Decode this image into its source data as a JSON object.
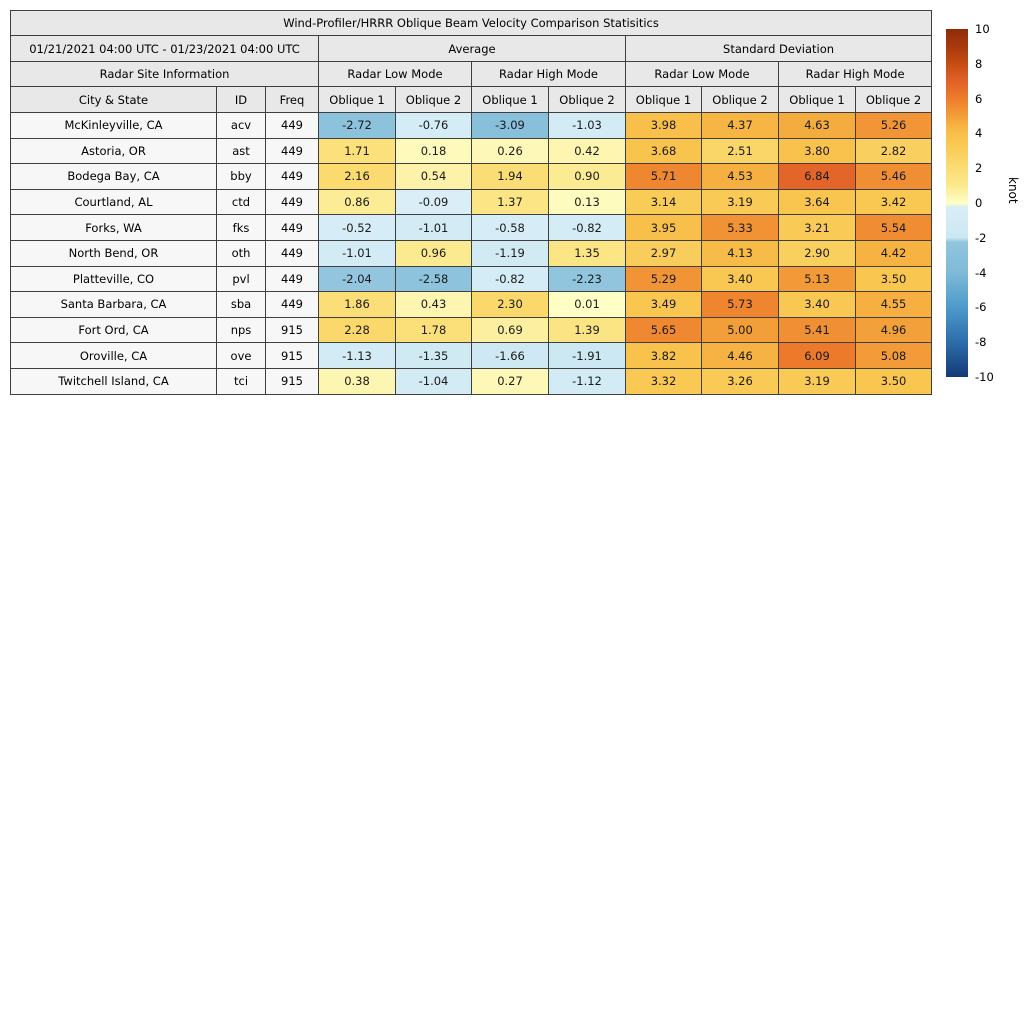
{
  "title": "Wind-Profiler/HRRR Oblique Beam Velocity Comparison Statisitics",
  "header": {
    "date_range": "01/21/2021 04:00 UTC - 01/23/2021 04:00 UTC",
    "group_average": "Average",
    "group_std": "Standard Deviation",
    "site_info": "Radar Site Information",
    "mode_labels": [
      "Radar Low Mode",
      "Radar High Mode",
      "Radar Low Mode",
      "Radar High Mode"
    ],
    "col_labels": [
      "City & State",
      "ID",
      "Freq",
      "Oblique 1",
      "Oblique 2",
      "Oblique 1",
      "Oblique 2",
      "Oblique 1",
      "Oblique 2",
      "Oblique 1",
      "Oblique 2"
    ]
  },
  "chart_data": {
    "type": "heatmap",
    "title": "Wind-Profiler/HRRR Oblique Beam Velocity Comparison Statisitics",
    "value_columns": [
      "Average Radar Low Mode Oblique 1",
      "Average Radar Low Mode Oblique 2",
      "Average Radar High Mode Oblique 1",
      "Average Radar High Mode Oblique 2",
      "Standard Deviation Radar Low Mode Oblique 1",
      "Standard Deviation Radar Low Mode Oblique 2",
      "Standard Deviation Radar High Mode Oblique 1",
      "Standard Deviation Radar High Mode Oblique 2"
    ],
    "rows": [
      {
        "city": "McKinleyville, CA",
        "id": "acv",
        "freq": "449",
        "values": [
          -2.72,
          -0.76,
          -3.09,
          -1.03,
          3.98,
          4.37,
          4.63,
          5.26
        ]
      },
      {
        "city": "Astoria, OR",
        "id": "ast",
        "freq": "449",
        "values": [
          1.71,
          0.18,
          0.26,
          0.42,
          3.68,
          2.51,
          3.8,
          2.82
        ]
      },
      {
        "city": "Bodega Bay, CA",
        "id": "bby",
        "freq": "449",
        "values": [
          2.16,
          0.54,
          1.94,
          0.9,
          5.71,
          4.53,
          6.84,
          5.46
        ]
      },
      {
        "city": "Courtland, AL",
        "id": "ctd",
        "freq": "449",
        "values": [
          0.86,
          -0.09,
          1.37,
          0.13,
          3.14,
          3.19,
          3.64,
          3.42
        ]
      },
      {
        "city": "Forks, WA",
        "id": "fks",
        "freq": "449",
        "values": [
          -0.52,
          -1.01,
          -0.58,
          -0.82,
          3.95,
          5.33,
          3.21,
          5.54
        ]
      },
      {
        "city": "North Bend, OR",
        "id": "oth",
        "freq": "449",
        "values": [
          -1.01,
          0.96,
          -1.19,
          1.35,
          2.97,
          4.13,
          2.9,
          4.42
        ]
      },
      {
        "city": "Platteville, CO",
        "id": "pvl",
        "freq": "449",
        "values": [
          -2.04,
          -2.58,
          -0.82,
          -2.23,
          5.29,
          3.4,
          5.13,
          3.5
        ]
      },
      {
        "city": "Santa Barbara, CA",
        "id": "sba",
        "freq": "449",
        "values": [
          1.86,
          0.43,
          2.3,
          0.01,
          3.49,
          5.73,
          3.4,
          4.55
        ]
      },
      {
        "city": "Fort Ord, CA",
        "id": "nps",
        "freq": "915",
        "values": [
          2.28,
          1.78,
          0.69,
          1.39,
          5.65,
          5.0,
          5.41,
          4.96
        ]
      },
      {
        "city": "Oroville, CA",
        "id": "ove",
        "freq": "915",
        "values": [
          -1.13,
          -1.35,
          -1.66,
          -1.91,
          3.82,
          4.46,
          6.09,
          5.08
        ]
      },
      {
        "city": "Twitchell Island, CA",
        "id": "tci",
        "freq": "915",
        "values": [
          0.38,
          -1.04,
          0.27,
          -1.12,
          3.32,
          3.26,
          3.19,
          3.5
        ]
      }
    ],
    "colorbar": {
      "label": "knot",
      "range": [
        -10,
        10
      ],
      "ticks": [
        10,
        8,
        6,
        4,
        2,
        0,
        -2,
        -4,
        -6,
        -8,
        -10
      ]
    },
    "colormap_stops": [
      [
        -10,
        "#113a76"
      ],
      [
        -8,
        "#2d6cab"
      ],
      [
        -6,
        "#4d9ac9"
      ],
      [
        -4,
        "#7fbad7"
      ],
      [
        -2.01,
        "#93c6de"
      ],
      [
        -2,
        "#cbe8f2"
      ],
      [
        -0.01,
        "#daeef7"
      ],
      [
        0,
        "#fffec5"
      ],
      [
        0.5,
        "#fdf3ac"
      ],
      [
        1,
        "#fbe98c"
      ],
      [
        1.5,
        "#fbe381"
      ],
      [
        2,
        "#fbdc73"
      ],
      [
        2.5,
        "#fad567"
      ],
      [
        3,
        "#f9cd5a"
      ],
      [
        3.5,
        "#f9c750"
      ],
      [
        4,
        "#f8bf4a"
      ],
      [
        4.5,
        "#f6b141"
      ],
      [
        5,
        "#f29e39"
      ],
      [
        5.5,
        "#f08d33"
      ],
      [
        6,
        "#ed7d2b"
      ],
      [
        6.5,
        "#e86e28"
      ],
      [
        7,
        "#e2612a"
      ],
      [
        8,
        "#c54c14"
      ],
      [
        9,
        "#a8390d"
      ],
      [
        10,
        "#8e2c0a"
      ]
    ],
    "theme": {
      "header_bg": "#e8e8e8",
      "site_bg": "#f7f7f7",
      "border": "#3f3f3f"
    }
  }
}
